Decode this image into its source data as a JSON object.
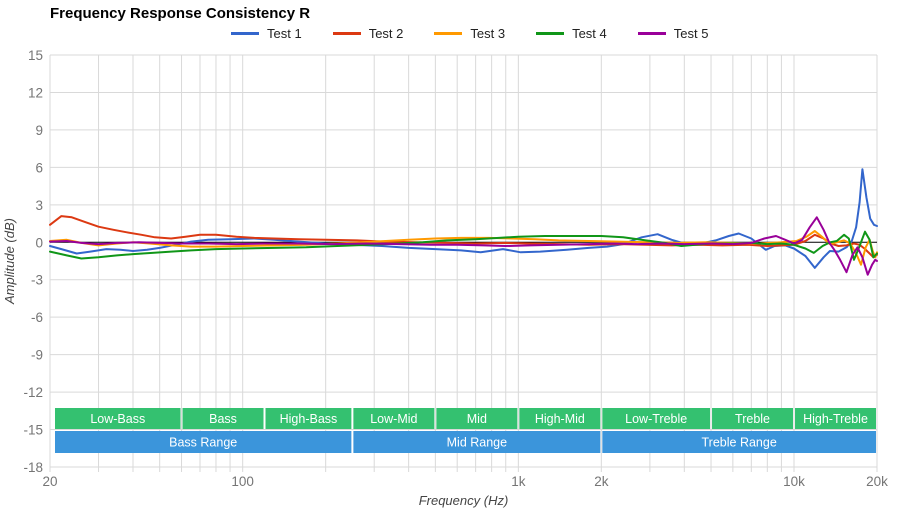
{
  "chart_data": {
    "type": "line",
    "title": "Frequency Response Consistency R",
    "xlabel": "Frequency (Hz)",
    "ylabel": "Amplitude (dB)",
    "x_scale": "log",
    "xlim": [
      20,
      20000
    ],
    "ylim": [
      -18,
      15
    ],
    "grid": true,
    "legend_position": "top",
    "y_ticks": [
      15,
      12,
      9,
      6,
      3,
      0,
      -3,
      -6,
      -9,
      -12,
      -15,
      -18
    ],
    "x_tick_labels": [
      {
        "f": 20,
        "label": "20"
      },
      {
        "f": 100,
        "label": "100"
      },
      {
        "f": 1000,
        "label": "1k"
      },
      {
        "f": 2000,
        "label": "2k"
      },
      {
        "f": 10000,
        "label": "10k"
      },
      {
        "f": 20000,
        "label": "20k"
      }
    ],
    "colors": {
      "grid": "#d9d9d9",
      "zero_line": "#000000",
      "tick_text": "#757575",
      "axis_title_text": "#444444",
      "band_sub": "#34c170",
      "band_range": "#3b95db",
      "band_text": "#ffffff"
    },
    "bands_sub": [
      {
        "label": "Low-Bass",
        "from": 20,
        "to": 60
      },
      {
        "label": "Bass",
        "from": 60,
        "to": 120
      },
      {
        "label": "High-Bass",
        "from": 120,
        "to": 250
      },
      {
        "label": "Low-Mid",
        "from": 250,
        "to": 500
      },
      {
        "label": "Mid",
        "from": 500,
        "to": 1000
      },
      {
        "label": "High-Mid",
        "from": 1000,
        "to": 2000
      },
      {
        "label": "Low-Treble",
        "from": 2000,
        "to": 5000
      },
      {
        "label": "Treble",
        "from": 5000,
        "to": 10000
      },
      {
        "label": "High-Treble",
        "from": 10000,
        "to": 20000
      }
    ],
    "bands_range": [
      {
        "label": "Bass Range",
        "from": 20,
        "to": 250
      },
      {
        "label": "Mid Range",
        "from": 250,
        "to": 2000
      },
      {
        "label": "Treble Range",
        "from": 2000,
        "to": 20000
      }
    ],
    "series": [
      {
        "name": "Test 1",
        "color": "#3366cc",
        "points": [
          [
            20,
            -0.3
          ],
          [
            22,
            -0.55
          ],
          [
            25,
            -0.9
          ],
          [
            28,
            -0.75
          ],
          [
            32,
            -0.55
          ],
          [
            36,
            -0.6
          ],
          [
            40,
            -0.7
          ],
          [
            45,
            -0.6
          ],
          [
            50,
            -0.45
          ],
          [
            57,
            -0.2
          ],
          [
            65,
            0.05
          ],
          [
            75,
            0.2
          ],
          [
            90,
            0.25
          ],
          [
            110,
            0.3
          ],
          [
            130,
            0.2
          ],
          [
            160,
            0.05
          ],
          [
            200,
            -0.1
          ],
          [
            250,
            -0.2
          ],
          [
            320,
            -0.3
          ],
          [
            400,
            -0.45
          ],
          [
            500,
            -0.55
          ],
          [
            620,
            -0.65
          ],
          [
            730,
            -0.8
          ],
          [
            880,
            -0.55
          ],
          [
            1020,
            -0.8
          ],
          [
            1200,
            -0.75
          ],
          [
            1500,
            -0.6
          ],
          [
            1800,
            -0.45
          ],
          [
            2100,
            -0.35
          ],
          [
            2400,
            -0.15
          ],
          [
            2800,
            0.4
          ],
          [
            3200,
            0.65
          ],
          [
            3600,
            0.2
          ],
          [
            4000,
            -0.1
          ],
          [
            4500,
            -0.15
          ],
          [
            5200,
            0.15
          ],
          [
            5800,
            0.5
          ],
          [
            6300,
            0.7
          ],
          [
            7000,
            0.3
          ],
          [
            7900,
            -0.6
          ],
          [
            8500,
            -0.3
          ],
          [
            9300,
            -0.25
          ],
          [
            10000,
            -0.5
          ],
          [
            11000,
            -1.1
          ],
          [
            11900,
            -2.05
          ],
          [
            12800,
            -1.2
          ],
          [
            13500,
            -0.7
          ],
          [
            14500,
            -0.75
          ],
          [
            15500,
            -0.4
          ],
          [
            16200,
            0.1
          ],
          [
            16800,
            1.2
          ],
          [
            17300,
            3.2
          ],
          [
            17700,
            5.85
          ],
          [
            18300,
            3.6
          ],
          [
            18900,
            1.9
          ],
          [
            19500,
            1.4
          ],
          [
            20000,
            1.3
          ]
        ]
      },
      {
        "name": "Test 2",
        "color": "#dc3912",
        "points": [
          [
            20,
            1.4
          ],
          [
            22,
            2.1
          ],
          [
            24,
            2.0
          ],
          [
            27,
            1.6
          ],
          [
            30,
            1.25
          ],
          [
            34,
            1.0
          ],
          [
            38,
            0.8
          ],
          [
            43,
            0.6
          ],
          [
            48,
            0.4
          ],
          [
            55,
            0.3
          ],
          [
            62,
            0.45
          ],
          [
            70,
            0.6
          ],
          [
            80,
            0.6
          ],
          [
            95,
            0.45
          ],
          [
            110,
            0.35
          ],
          [
            130,
            0.3
          ],
          [
            160,
            0.25
          ],
          [
            200,
            0.2
          ],
          [
            260,
            0.15
          ],
          [
            330,
            0.05
          ],
          [
            420,
            0
          ],
          [
            550,
            -0.05
          ],
          [
            700,
            -0.1
          ],
          [
            900,
            -0.05
          ],
          [
            1100,
            -0.1
          ],
          [
            1400,
            -0.15
          ],
          [
            1800,
            -0.2
          ],
          [
            2300,
            -0.15
          ],
          [
            2900,
            -0.2
          ],
          [
            3600,
            -0.25
          ],
          [
            4500,
            -0.2
          ],
          [
            5500,
            -0.25
          ],
          [
            6800,
            -0.2
          ],
          [
            8000,
            -0.3
          ],
          [
            9000,
            -0.25
          ],
          [
            10000,
            -0.2
          ],
          [
            11000,
            0.1
          ],
          [
            11900,
            0.6
          ],
          [
            12800,
            0.3
          ],
          [
            13600,
            -0.1
          ],
          [
            14500,
            -0.3
          ],
          [
            15500,
            -0.25
          ],
          [
            16500,
            -0.1
          ],
          [
            17300,
            -0.2
          ],
          [
            18000,
            -0.5
          ],
          [
            18800,
            -0.9
          ],
          [
            19400,
            -1.2
          ],
          [
            20000,
            -1.0
          ]
        ]
      },
      {
        "name": "Test 3",
        "color": "#ff9900",
        "points": [
          [
            20,
            0.1
          ],
          [
            23,
            0.2
          ],
          [
            26,
            -0.05
          ],
          [
            30,
            -0.25
          ],
          [
            35,
            -0.1
          ],
          [
            40,
            0
          ],
          [
            46,
            -0.1
          ],
          [
            55,
            -0.25
          ],
          [
            65,
            -0.35
          ],
          [
            80,
            -0.35
          ],
          [
            100,
            -0.3
          ],
          [
            130,
            -0.25
          ],
          [
            170,
            -0.2
          ],
          [
            220,
            -0.1
          ],
          [
            300,
            0.05
          ],
          [
            400,
            0.2
          ],
          [
            500,
            0.3
          ],
          [
            620,
            0.35
          ],
          [
            780,
            0.35
          ],
          [
            950,
            0.3
          ],
          [
            1150,
            0.25
          ],
          [
            1400,
            0.15
          ],
          [
            1800,
            0.1
          ],
          [
            2300,
            0.05
          ],
          [
            3000,
            0
          ],
          [
            3800,
            -0.05
          ],
          [
            4800,
            0
          ],
          [
            6000,
            -0.05
          ],
          [
            7500,
            -0.1
          ],
          [
            9000,
            0
          ],
          [
            10200,
            0.1
          ],
          [
            11100,
            0.45
          ],
          [
            11900,
            0.9
          ],
          [
            12700,
            0.4
          ],
          [
            13500,
            -0.15
          ],
          [
            14300,
            0
          ],
          [
            15200,
            0.15
          ],
          [
            16000,
            -0.1
          ],
          [
            16800,
            -0.9
          ],
          [
            17500,
            -1.8
          ],
          [
            18200,
            -0.4
          ],
          [
            18800,
            0.2
          ],
          [
            19300,
            -0.7
          ],
          [
            19700,
            -1.2
          ],
          [
            20000,
            -0.8
          ]
        ]
      },
      {
        "name": "Test 4",
        "color": "#109618",
        "points": [
          [
            20,
            -0.75
          ],
          [
            23,
            -1.05
          ],
          [
            26,
            -1.3
          ],
          [
            30,
            -1.2
          ],
          [
            35,
            -1.05
          ],
          [
            40,
            -0.95
          ],
          [
            47,
            -0.85
          ],
          [
            55,
            -0.75
          ],
          [
            65,
            -0.65
          ],
          [
            80,
            -0.55
          ],
          [
            100,
            -0.5
          ],
          [
            130,
            -0.45
          ],
          [
            170,
            -0.4
          ],
          [
            220,
            -0.3
          ],
          [
            290,
            -0.2
          ],
          [
            370,
            -0.1
          ],
          [
            450,
            0
          ],
          [
            550,
            0.15
          ],
          [
            700,
            0.25
          ],
          [
            850,
            0.35
          ],
          [
            1000,
            0.45
          ],
          [
            1250,
            0.5
          ],
          [
            1600,
            0.5
          ],
          [
            2000,
            0.5
          ],
          [
            2400,
            0.4
          ],
          [
            2900,
            0.15
          ],
          [
            3400,
            -0.05
          ],
          [
            3900,
            -0.3
          ],
          [
            4400,
            -0.2
          ],
          [
            5000,
            -0.1
          ],
          [
            6000,
            -0.1
          ],
          [
            7000,
            -0.05
          ],
          [
            8000,
            -0.15
          ],
          [
            9000,
            -0.1
          ],
          [
            10000,
            -0.2
          ],
          [
            11000,
            -0.5
          ],
          [
            11800,
            -0.85
          ],
          [
            12700,
            -0.3
          ],
          [
            13500,
            0
          ],
          [
            14300,
            0.1
          ],
          [
            15200,
            0.6
          ],
          [
            15800,
            0.3
          ],
          [
            16500,
            -1.4
          ],
          [
            17300,
            -0.3
          ],
          [
            18100,
            0.85
          ],
          [
            18800,
            0.2
          ],
          [
            19400,
            -1.2
          ],
          [
            20000,
            -0.9
          ]
        ]
      },
      {
        "name": "Test 5",
        "color": "#990099",
        "points": [
          [
            20,
            0.05
          ],
          [
            23,
            0.1
          ],
          [
            26,
            -0.05
          ],
          [
            30,
            -0.15
          ],
          [
            35,
            -0.05
          ],
          [
            42,
            0
          ],
          [
            50,
            -0.05
          ],
          [
            60,
            -0.1
          ],
          [
            75,
            -0.1
          ],
          [
            95,
            -0.15
          ],
          [
            120,
            -0.1
          ],
          [
            160,
            -0.1
          ],
          [
            210,
            -0.15
          ],
          [
            280,
            -0.1
          ],
          [
            370,
            -0.15
          ],
          [
            480,
            -0.2
          ],
          [
            600,
            -0.2
          ],
          [
            750,
            -0.25
          ],
          [
            900,
            -0.3
          ],
          [
            1100,
            -0.25
          ],
          [
            1400,
            -0.2
          ],
          [
            1800,
            -0.15
          ],
          [
            2200,
            -0.1
          ],
          [
            2700,
            -0.15
          ],
          [
            3300,
            -0.1
          ],
          [
            4000,
            -0.15
          ],
          [
            5000,
            -0.1
          ],
          [
            6000,
            -0.15
          ],
          [
            7000,
            -0.05
          ],
          [
            7800,
            0.3
          ],
          [
            8600,
            0.5
          ],
          [
            9300,
            0.2
          ],
          [
            10000,
            -0.1
          ],
          [
            10700,
            0.2
          ],
          [
            11400,
            1.2
          ],
          [
            12100,
            2.0
          ],
          [
            12800,
            1.0
          ],
          [
            13400,
            0
          ],
          [
            14000,
            -0.6
          ],
          [
            14700,
            -1.4
          ],
          [
            15500,
            -2.4
          ],
          [
            16300,
            -1.0
          ],
          [
            17000,
            -0.4
          ],
          [
            17700,
            -1.2
          ],
          [
            18500,
            -2.6
          ],
          [
            19200,
            -1.8
          ],
          [
            19700,
            -1.4
          ],
          [
            20000,
            -1.5
          ]
        ]
      }
    ]
  }
}
